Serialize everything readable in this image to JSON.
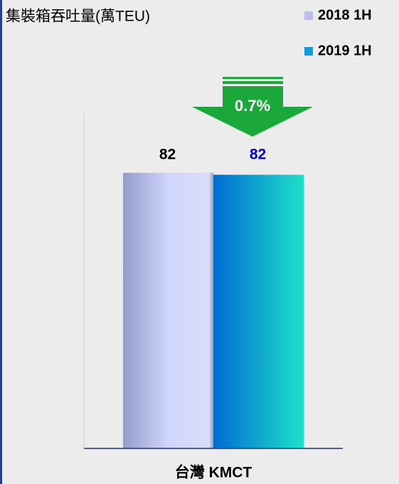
{
  "chart_data": {
    "type": "bar",
    "title": "集裝箱吞吐量(萬TEU)",
    "categories": [
      "台灣 KMCT"
    ],
    "series": [
      {
        "name": "2018 1H",
        "color": "#b9c0ea",
        "values": [
          82.4
        ],
        "value_labels": [
          "82"
        ]
      },
      {
        "name": "2019 1H",
        "color": "#0a9ed6",
        "values": [
          81.8
        ],
        "value_labels": [
          "82"
        ]
      }
    ],
    "annotation": "0.7%"
  }
}
